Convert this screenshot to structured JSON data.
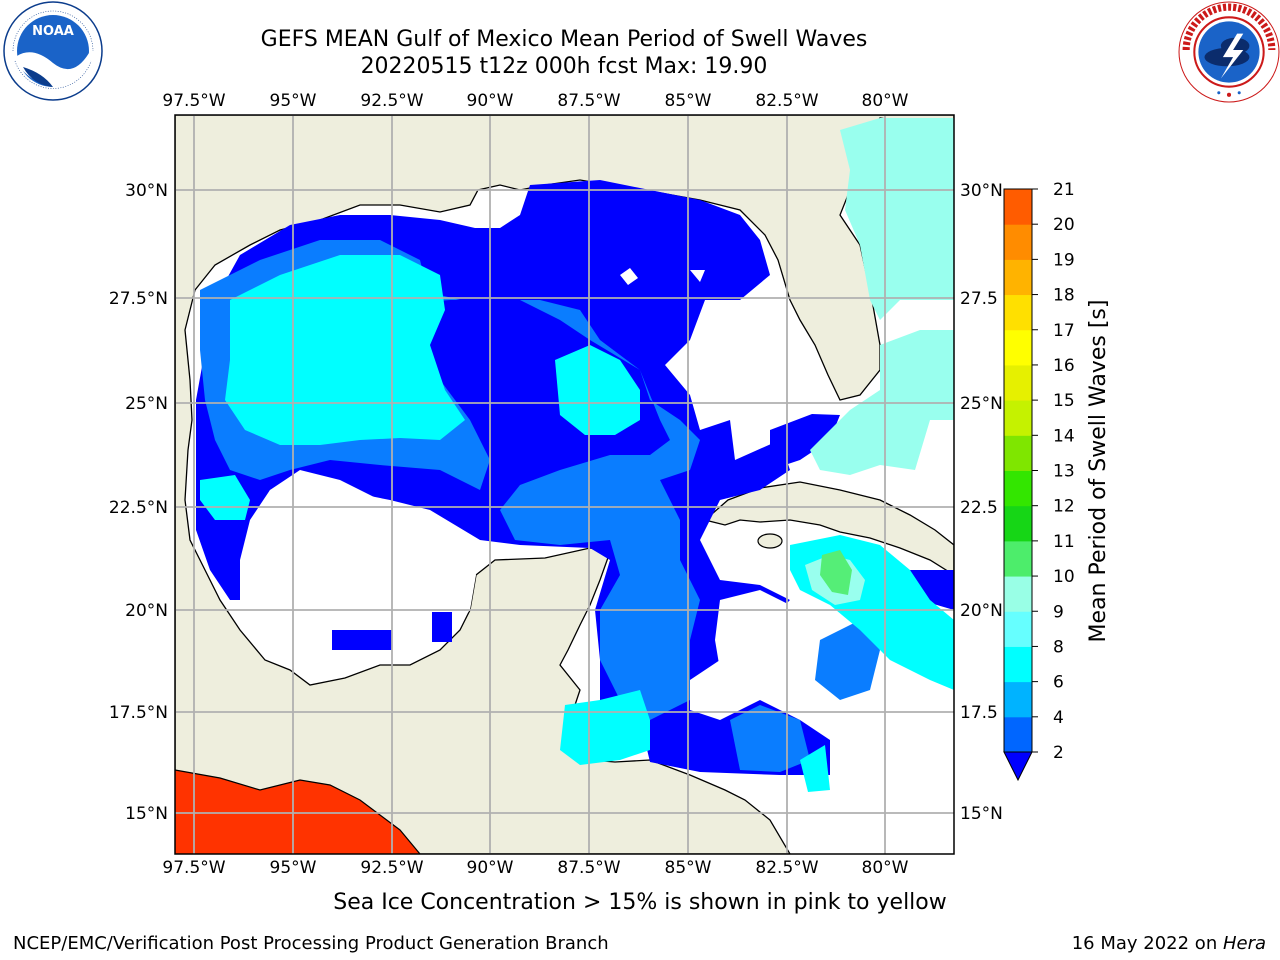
{
  "title_line1": "GEFS MEAN Gulf of Mexico Mean Period of Swell Waves",
  "title_line2": "20220515 t12z 000h fcst   Max: 19.90",
  "lon_labels": [
    "97.5°W",
    "95°W",
    "92.5°W",
    "90°W",
    "87.5°W",
    "85°W",
    "82.5°W",
    "80°W"
  ],
  "lat_labels_left": [
    "30°N",
    "27.5°N",
    "25°N",
    "22.5°N",
    "20°N",
    "17.5°N",
    "15°N"
  ],
  "lat_labels_right": [
    "30°N",
    "27.5",
    "25°N",
    "22.5",
    "20°N",
    "17.5",
    "15°N"
  ],
  "colorbar": {
    "label": "Mean Period of Swell Waves [s]",
    "ticks": [
      "2",
      "4",
      "6",
      "8",
      "9",
      "10",
      "11",
      "12",
      "13",
      "14",
      "15",
      "16",
      "17",
      "18",
      "19",
      "20",
      "21"
    ],
    "colors": [
      "#0066ff",
      "#00b3ff",
      "#00ffff",
      "#66ffff",
      "#99ffe6",
      "#4ded6b",
      "#16d616",
      "#33e600",
      "#7fe600",
      "#c5f200",
      "#e6f000",
      "#ffff00",
      "#ffe000",
      "#ffb300",
      "#ff8c00",
      "#ff5c00",
      "#ff3300",
      "#ff0000"
    ],
    "extend_color": "#0000ff"
  },
  "colors": {
    "land": "#eeeedd",
    "grid": "#b0b0b0",
    "dark_blue": "#0000ff",
    "mid_blue": "#0a7dff",
    "cyan": "#00ffff",
    "light_cyan": "#66ffff",
    "pale_cyan": "#99ffee",
    "green": "#55ee77",
    "red": "#ff3300"
  },
  "footnote": "Sea Ice Concentration > 15% is shown in pink to yellow",
  "credit": "NCEP/EMC/Verification Post Processing Product Generation Branch",
  "date_text": "16 May 2022 on ",
  "date_host": "Hera",
  "logos": {
    "left": "NOAA",
    "right": "NATIONAL WEATHER SERVICE"
  }
}
